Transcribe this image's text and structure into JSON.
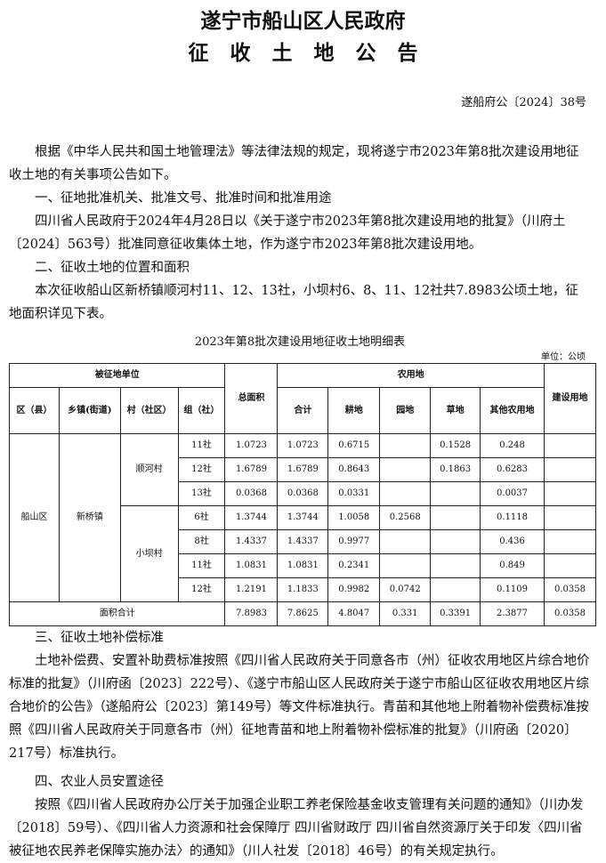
{
  "header": {
    "org": "遂宁市船山区人民政府",
    "title": "征收土地公告",
    "doc_no": "遂船府公〔2024〕38号"
  },
  "intro": "根据《中华人民共和国土地管理法》等法律法规的规定，现将遂宁市2023年第8批次建设用地征收土地的有关事项公告如下。",
  "s1": {
    "heading": "一、征地批准机关、批准文号、批准时间和批准用途",
    "text": "四川省人民政府于2024年4月28日以《关于遂宁市2023年第8批次建设用地的批复》（川府土〔2024〕563号）批准同意征收集体土地，作为遂宁市2023年第8批次建设用地。"
  },
  "s2": {
    "heading": "二、征收土地的位置和面积",
    "text": "本次征收船山区新桥镇顺河村11、12、13社，小坝村6、8、11、12社共7.8983公顷土地，征地面积详见下表。"
  },
  "table": {
    "caption": "2023年第8批次建设用地征收土地明细表",
    "unit": "单位：公顷",
    "h_unit": "被征地单位",
    "h_total": "总面积",
    "h_farm": "农用地",
    "h_build": "建设用地",
    "h_district": "区（县）",
    "h_town": "乡镇(街道)",
    "h_village": "村（社区）",
    "h_group": "组（社）",
    "h_sum": "合计",
    "h_arable": "耕地",
    "h_garden": "园地",
    "h_grass": "草地",
    "h_other": "其他农用地",
    "district": "船山区",
    "town": "新桥镇",
    "village1": "顺河村",
    "village2": "小坝村",
    "rows": [
      {
        "group": "11社",
        "total": "1.0723",
        "sum": "1.0723",
        "arable": "0.6715",
        "garden": "",
        "grass": "0.1528",
        "other": "0.248",
        "build": ""
      },
      {
        "group": "12社",
        "total": "1.6789",
        "sum": "1.6789",
        "arable": "0.8643",
        "garden": "",
        "grass": "0.1863",
        "other": "0.6283",
        "build": ""
      },
      {
        "group": "13社",
        "total": "0.0368",
        "sum": "0.0368",
        "arable": "0.0331",
        "garden": "",
        "grass": "",
        "other": "0.0037",
        "build": ""
      },
      {
        "group": "6社",
        "total": "1.3744",
        "sum": "1.3744",
        "arable": "1.0058",
        "garden": "0.2568",
        "grass": "",
        "other": "0.1118",
        "build": ""
      },
      {
        "group": "8社",
        "total": "1.4337",
        "sum": "1.4337",
        "arable": "0.9977",
        "garden": "",
        "grass": "",
        "other": "0.436",
        "build": ""
      },
      {
        "group": "11社",
        "total": "1.0831",
        "sum": "1.0831",
        "arable": "0.2341",
        "garden": "",
        "grass": "",
        "other": "0.849",
        "build": ""
      },
      {
        "group": "12社",
        "total": "1.2191",
        "sum": "1.1833",
        "arable": "0.9982",
        "garden": "0.0742",
        "grass": "",
        "other": "0.1109",
        "build": "0.0358"
      }
    ],
    "totals": {
      "label": "面积合计",
      "total": "7.8983",
      "sum": "7.8625",
      "arable": "4.8047",
      "garden": "0.331",
      "grass": "0.3391",
      "other": "2.3877",
      "build": "0.0358"
    }
  },
  "s3": {
    "heading": "三、征收土地补偿标准",
    "text": "土地补偿费、安置补助费标准按照《四川省人民政府关于同意各市（州）征收农用地区片综合地价标准的批复》（川府函〔2023〕222号）、《遂宁市船山区人民政府关于遂宁市船山区征收农用地区片综合地价的公告》（遂船府公〔2023〕第149号）等文件标准执行。青苗和其他地上附着物补偿费标准按照《四川省人民政府关于同意各市（州）征地青苗和地上附着物补偿标准的批复》（川府函〔2020〕217号）标准执行。"
  },
  "s4": {
    "heading": "四、农业人员安置途径",
    "text": "按照《四川省人民政府办公厅关于加强企业职工养老保险基金收支管理有关问题的通知》（川办发〔2018〕59号）、《四川省人力资源和社会保障厅 四川省财政厅 四川省自然资源厅关于印发〈四川省被征地农民养老保障实施办法〉的通知》（川人社发〔2018〕46号）的有关规定执行。"
  }
}
